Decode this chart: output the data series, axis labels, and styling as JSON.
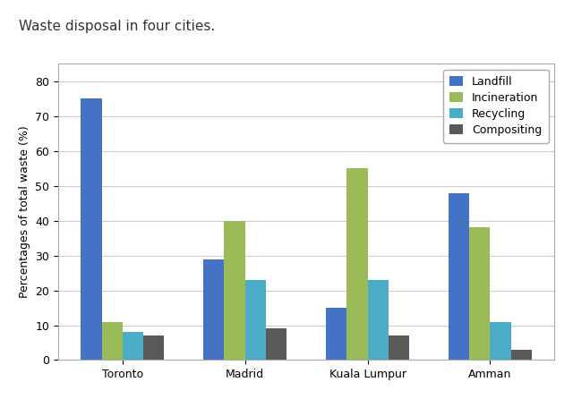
{
  "title": "Waste disposal in four cities.",
  "ylabel": "Percentages of total waste (%)",
  "cities": [
    "Toronto",
    "Madrid",
    "Kuala Lumpur",
    "Amman"
  ],
  "methods": [
    "Landfill",
    "Incineration",
    "Recycling",
    "Compositing"
  ],
  "values": {
    "Landfill": [
      75,
      29,
      15,
      48
    ],
    "Incineration": [
      11,
      40,
      55,
      38
    ],
    "Recycling": [
      8,
      23,
      23,
      11
    ],
    "Compositing": [
      7,
      9,
      7,
      3
    ]
  },
  "colors": {
    "Landfill": "#4472C4",
    "Incineration": "#9BBB59",
    "Recycling": "#4BACC6",
    "Compositing": "#595959"
  },
  "ylim": [
    0,
    85
  ],
  "yticks": [
    0,
    10,
    20,
    30,
    40,
    50,
    60,
    70,
    80
  ],
  "bar_width": 0.17,
  "title_fontsize": 11,
  "axis_label_fontsize": 9,
  "tick_fontsize": 9,
  "legend_fontsize": 9,
  "background_color": "#ffffff",
  "plot_bg_color": "#ffffff",
  "grid_color": "#cccccc"
}
